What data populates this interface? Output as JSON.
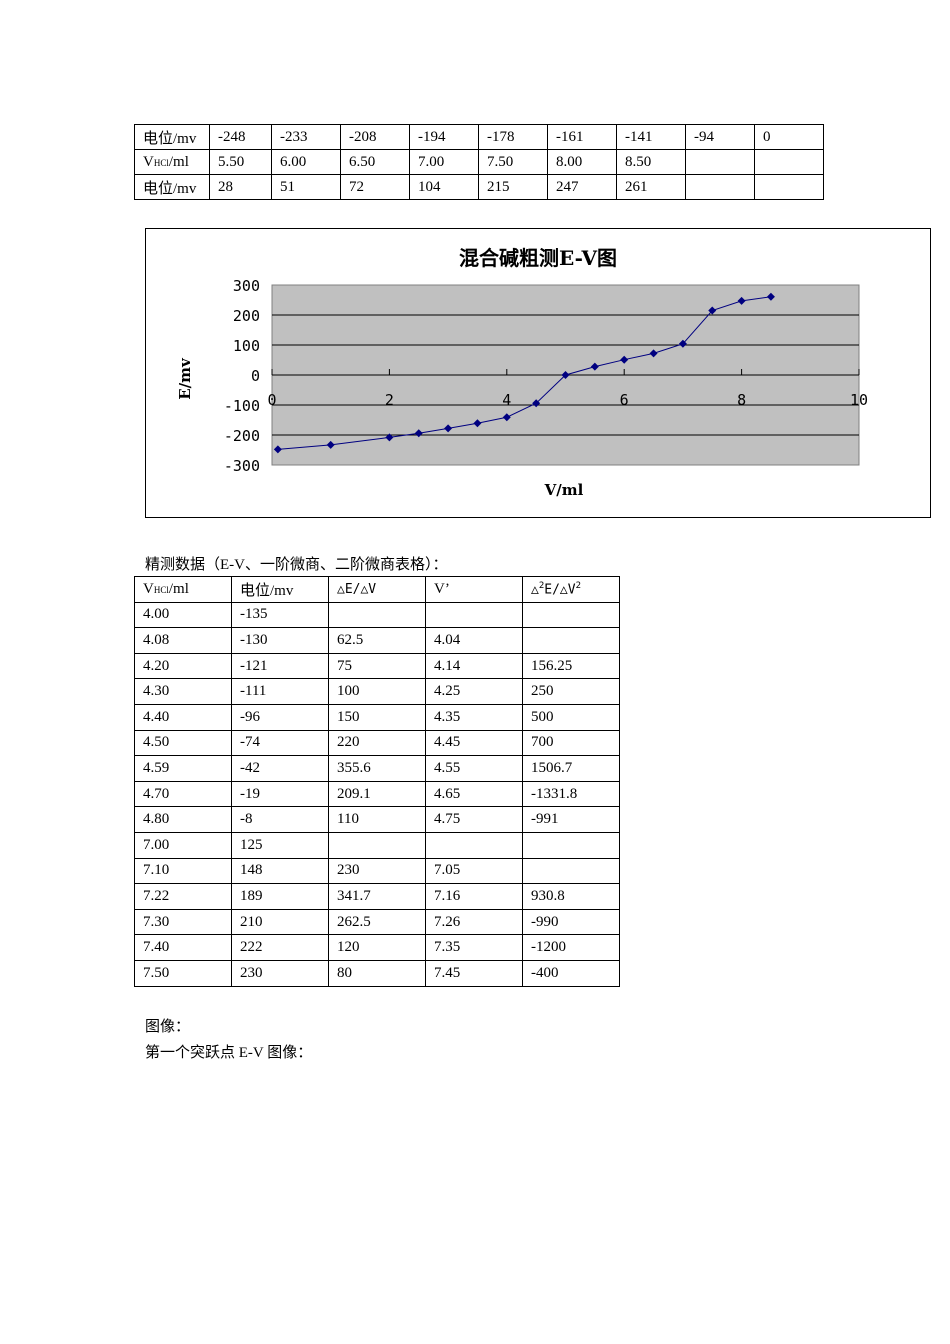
{
  "top_table": {
    "rows": [
      {
        "label": "电位/mv",
        "values": [
          "-248",
          "-233",
          "-208",
          "-194",
          "-178",
          "-161",
          "-141",
          "-94",
          "0"
        ]
      },
      {
        "label_main": "V",
        "label_sub": "HCl",
        "label_rest": "/ml",
        "values": [
          "5.50",
          "6.00",
          "6.50",
          "7.00",
          "7.50",
          "8.00",
          "8.50",
          "",
          ""
        ]
      },
      {
        "label": "电位/mv",
        "values": [
          "28",
          "51",
          "72",
          "104",
          "215",
          "247",
          "261",
          "",
          ""
        ]
      }
    ]
  },
  "chart_data": {
    "type": "line",
    "title": "混合碱粗测E-V图",
    "xlabel": "V/ml",
    "ylabel": "E/mv",
    "xlim": [
      0,
      10
    ],
    "ylim": [
      -300,
      300
    ],
    "x_ticks": [
      "0",
      "2",
      "4",
      "6",
      "8",
      "10"
    ],
    "y_ticks": [
      "300",
      "200",
      "100",
      "0",
      "-100",
      "-200",
      "-300"
    ],
    "grid": true,
    "legend": "none",
    "plot_bg": "#c0c0c0",
    "series_color": "#000080",
    "x": [
      0.1,
      1.0,
      2.0,
      2.5,
      3.0,
      3.5,
      4.0,
      4.5,
      5.0,
      5.5,
      6.0,
      6.5,
      7.0,
      7.5,
      8.0,
      8.5
    ],
    "series": [
      {
        "name": "E",
        "values": [
          -248,
          -233,
          -208,
          -194,
          -178,
          -161,
          -141,
          -94,
          0,
          28,
          51,
          72,
          104,
          215,
          247,
          261
        ]
      }
    ]
  },
  "fine_section": {
    "heading": "精测数据（E-V、一阶微商、二阶微商表格）：",
    "headers": {
      "v_main": "V",
      "v_sub": "HCl",
      "v_rest": "/ml",
      "potential": "电位/mv",
      "de_dv": "△E/△V",
      "v_prime": "V’",
      "d2e_main": "△",
      "d2e_sup": "2",
      "d2e_mid": "E/△V",
      "d2e_sup2": "2"
    },
    "rows": [
      [
        "4.00",
        "-135",
        "",
        "",
        ""
      ],
      [
        "4.08",
        "-130",
        "62.5",
        "4.04",
        ""
      ],
      [
        "4.20",
        "-121",
        "75",
        "4.14",
        "156.25"
      ],
      [
        "4.30",
        "-111",
        "100",
        "4.25",
        "250"
      ],
      [
        "4.40",
        "-96",
        "150",
        "4.35",
        "500"
      ],
      [
        "4.50",
        "-74",
        "220",
        "4.45",
        "700"
      ],
      [
        "4.59",
        "-42",
        "355.6",
        "4.55",
        "1506.7"
      ],
      [
        "4.70",
        "-19",
        "209.1",
        "4.65",
        "-1331.8"
      ],
      [
        "4.80",
        "-8",
        "110",
        "4.75",
        "-991"
      ],
      [
        "7.00",
        "125",
        "",
        "",
        ""
      ],
      [
        "7.10",
        "148",
        "230",
        "7.05",
        ""
      ],
      [
        "7.22",
        "189",
        "341.7",
        "7.16",
        "930.8"
      ],
      [
        "7.30",
        "210",
        "262.5",
        "7.26",
        "-990"
      ],
      [
        "7.40",
        "222",
        "120",
        "7.35",
        "-1200"
      ],
      [
        "7.50",
        "230",
        "80",
        "7.45",
        "-400"
      ]
    ]
  },
  "footer": {
    "line1": "图像：",
    "line2": "第一个突跃点 E-V 图像："
  }
}
